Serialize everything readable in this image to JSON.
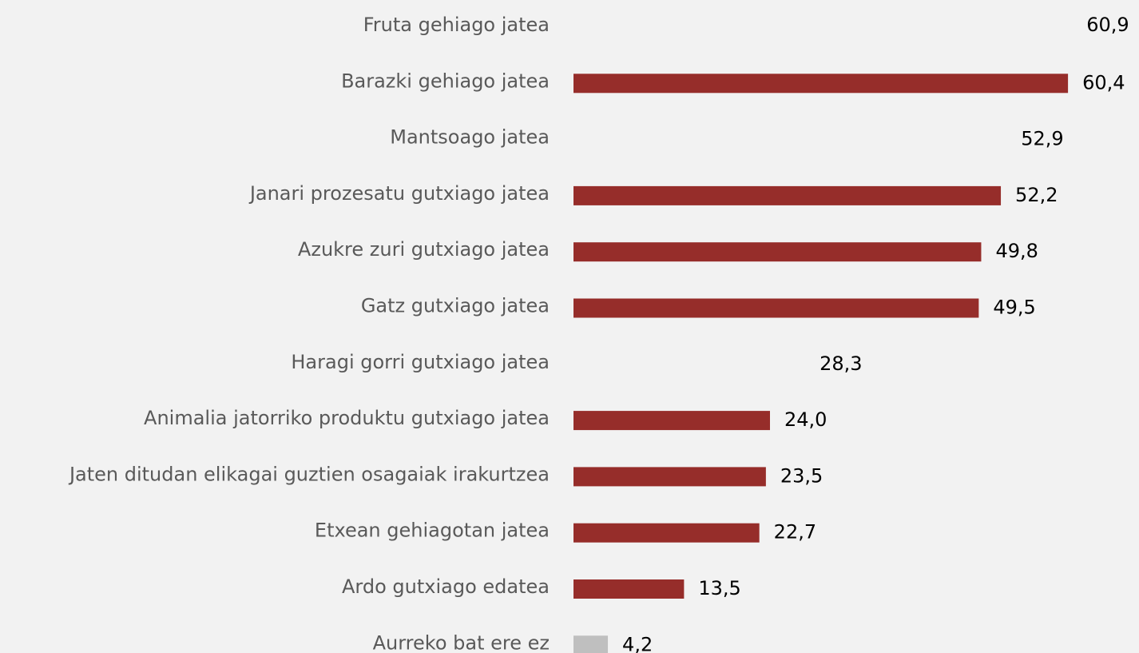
{
  "chart_data": {
    "type": "barh",
    "categories": [
      "Fruta gehiago jatea",
      "Barazki gehiago jatea",
      "Mantsoago jatea",
      "Janari prozesatu gutxiago jatea",
      "Azukre zuri gutxiago jatea",
      "Gatz gutxiago jatea",
      "Haragi gorri gutxiago jatea",
      "Animalia jatorriko produktu gutxiago jatea",
      "Jaten ditudan elikagai guztien osagaiak irakurtzea",
      "Etxean gehiagotan jatea",
      "Ardo gutxiago edatea",
      "Aurreko bat ere ez"
    ],
    "values": [
      60.9,
      60.4,
      52.9,
      52.2,
      49.8,
      49.5,
      28.3,
      24.0,
      23.5,
      22.7,
      13.5,
      4.2
    ],
    "value_labels": [
      "60,9",
      "60,4",
      "52,9",
      "52,2",
      "49,8",
      "49,5",
      "28,3",
      "24,0",
      "23,5",
      "22,7",
      "13,5",
      "4,2"
    ],
    "colors": [
      "#f2f2f2",
      "#962d2a",
      "#f2f2f2",
      "#962d2a",
      "#962d2a",
      "#962d2a",
      "#f2f2f2",
      "#962d2a",
      "#962d2a",
      "#962d2a",
      "#962d2a",
      "#bfbfbf"
    ]
  }
}
